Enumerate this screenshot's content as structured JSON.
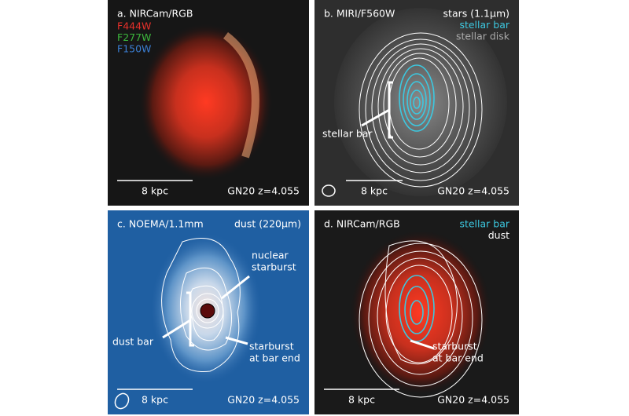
{
  "panels": [
    {
      "title": "a. NIRCam/RGB",
      "legend": [
        {
          "text": "F444W",
          "color": "#e8302a"
        },
        {
          "text": "F277W",
          "color": "#3cb83c"
        },
        {
          "text": "F150W",
          "color": "#3b7fd4"
        }
      ],
      "scale_bar": "8 kpc",
      "target": "GN20 z=4.055"
    },
    {
      "title": "b. MIRI/F560W",
      "legend": [
        {
          "text": "stars (1.1μm)",
          "color": "#ffffff"
        },
        {
          "text": "stellar bar",
          "color": "#3cc8e0"
        },
        {
          "text": "stellar disk",
          "color": "#aaaaaa"
        }
      ],
      "annotations": [
        {
          "lines": [
            "stellar bar"
          ]
        }
      ],
      "scale_bar": "8 kpc",
      "target": "GN20 z=4.055"
    },
    {
      "title": "c. NOEMA/1.1mm",
      "legend": [
        {
          "text": "dust (220μm)",
          "color": "#ffffff"
        }
      ],
      "annotations": [
        {
          "lines": [
            "nuclear",
            "starburst"
          ]
        },
        {
          "lines": [
            "dust bar"
          ]
        },
        {
          "lines": [
            "starburst",
            "at bar end"
          ]
        }
      ],
      "scale_bar": "8 kpc",
      "target": "GN20 z=4.055"
    },
    {
      "title": "d. NIRCam/RGB",
      "legend": [
        {
          "text": "stellar bar",
          "color": "#3cc8e0"
        },
        {
          "text": "dust",
          "color": "#ffffff"
        }
      ],
      "annotations": [
        {
          "lines": [
            "starburst",
            "at bar end"
          ]
        }
      ],
      "scale_bar": "8 kpc",
      "target": "GN20 z=4.055"
    }
  ]
}
